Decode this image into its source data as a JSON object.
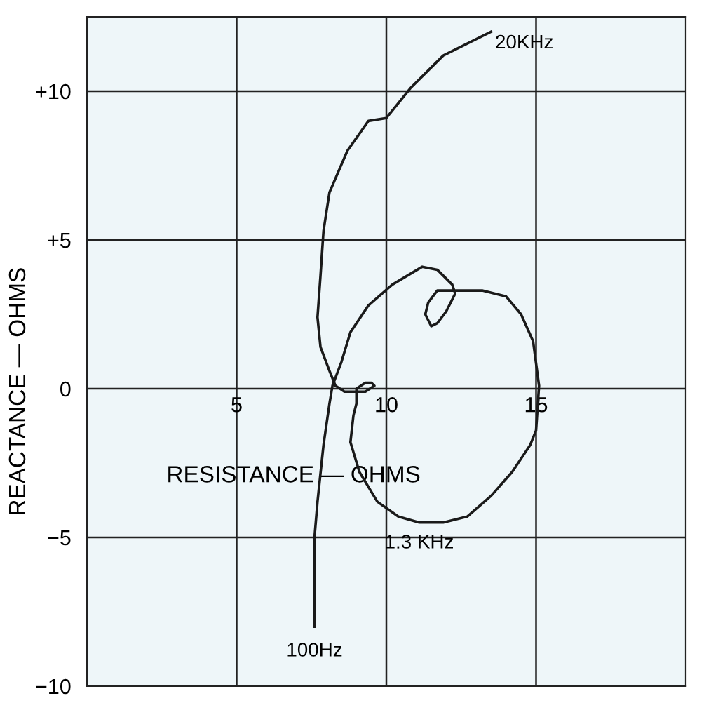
{
  "chart_data": {
    "type": "line",
    "xlabel": "RESISTANCE — OHMS",
    "ylabel": "REACTANCE — OHMS",
    "xlim": [
      0,
      20
    ],
    "ylim": [
      -10,
      12.5
    ],
    "xticks": [
      5,
      10,
      15
    ],
    "yticks": [
      {
        "value": 10,
        "label": "+10"
      },
      {
        "value": 5,
        "label": "+5"
      },
      0,
      {
        "value": -5,
        "label": "−5"
      },
      {
        "value": -10,
        "label": "−10"
      }
    ],
    "grid": true,
    "legend": false,
    "marker": "none",
    "line_style": "solid",
    "series": [
      {
        "color": "#1a1a1a",
        "x": [
          7.6,
          7.6,
          7.7,
          7.9,
          8.1,
          8.2,
          8.5,
          8.8,
          9.4,
          10.2,
          11.2,
          11.7,
          12.2,
          12.3,
          12.0,
          11.7,
          11.5,
          11.3,
          11.4,
          11.7,
          12.1,
          12.5,
          13.2,
          14.0,
          14.5,
          14.9,
          15.1,
          15.0,
          14.8,
          14.2,
          13.5,
          12.7,
          11.9,
          11.1,
          10.4,
          9.7,
          9.1,
          8.8,
          8.9,
          9.0,
          9.0,
          9.3,
          9.5,
          9.6,
          9.3,
          9.0,
          8.6,
          8.3,
          8.1,
          7.8,
          7.7,
          7.8,
          7.9,
          8.1,
          8.7,
          9.4,
          10.0,
          10.8,
          11.9,
          13.5
        ],
        "values": [
          -8.0,
          -5.0,
          -3.8,
          -1.9,
          -0.5,
          0.1,
          0.9,
          1.9,
          2.8,
          3.5,
          4.1,
          4.0,
          3.5,
          3.2,
          2.6,
          2.2,
          2.1,
          2.5,
          2.9,
          3.3,
          3.3,
          3.3,
          3.3,
          3.1,
          2.5,
          1.6,
          0.1,
          -1.4,
          -1.9,
          -2.8,
          -3.6,
          -4.3,
          -4.5,
          -4.5,
          -4.3,
          -3.8,
          -2.8,
          -1.8,
          -0.9,
          -0.5,
          0.0,
          0.2,
          0.2,
          0.1,
          -0.1,
          -0.1,
          -0.1,
          0.1,
          0.6,
          1.4,
          2.4,
          3.8,
          5.3,
          6.6,
          8.0,
          9.0,
          9.1,
          10.1,
          11.2,
          12.0
        ]
      }
    ],
    "annotations": [
      {
        "text": "20KHz",
        "x": 13.5,
        "y": 12.0
      },
      {
        "text": "1.3 KHz",
        "x": 11.1,
        "y": -4.5
      },
      {
        "text": "100Hz",
        "x": 7.6,
        "y": -8.0
      }
    ]
  }
}
